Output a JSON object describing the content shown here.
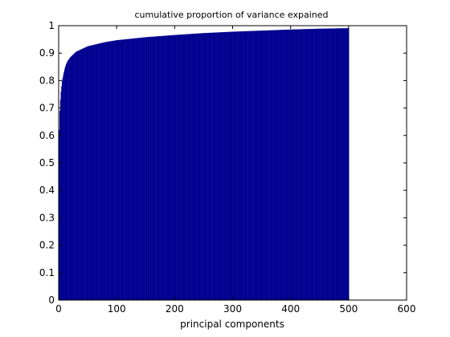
{
  "chart_data": {
    "type": "bar",
    "title": "cumulative proportion of variance expained",
    "xlabel": "principal components",
    "ylabel": "",
    "xlim": [
      0,
      600
    ],
    "ylim": [
      0,
      1
    ],
    "xticks": [
      0,
      100,
      200,
      300,
      400,
      500,
      600
    ],
    "yticks": [
      0,
      0.1,
      0.2,
      0.3,
      0.4,
      0.5,
      0.6,
      0.7,
      0.8,
      0.9,
      1
    ],
    "grid": false,
    "bar_color": "#00008f",
    "series": [
      {
        "x": [
          1,
          2,
          3,
          4,
          5,
          6,
          8,
          10,
          12,
          15,
          20,
          25,
          30,
          40,
          50,
          60,
          80,
          100,
          150,
          200,
          250,
          300,
          350,
          400,
          450,
          500
        ],
        "values": [
          0.62,
          0.69,
          0.73,
          0.76,
          0.78,
          0.8,
          0.82,
          0.84,
          0.855,
          0.87,
          0.885,
          0.895,
          0.905,
          0.915,
          0.925,
          0.93,
          0.94,
          0.947,
          0.958,
          0.966,
          0.973,
          0.978,
          0.982,
          0.986,
          0.989,
          0.991
        ]
      }
    ]
  }
}
